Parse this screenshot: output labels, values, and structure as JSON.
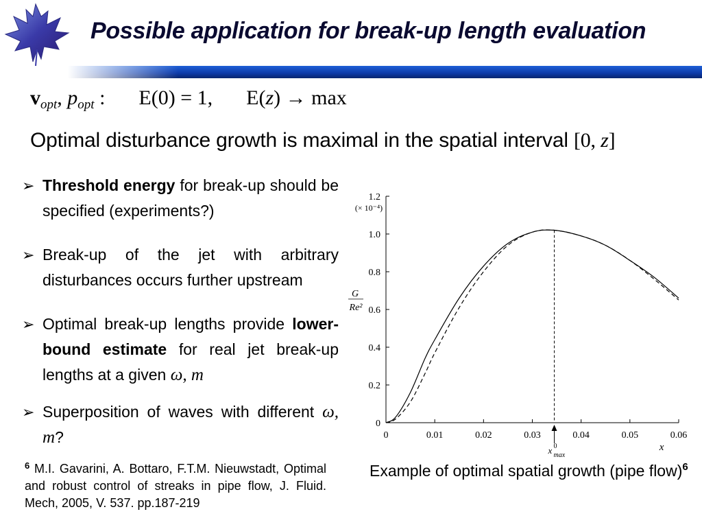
{
  "slide": {
    "title": "Possible application for break-up length evaluation",
    "formula": {
      "v": "v",
      "v_sub": "opt",
      "sep": ", ",
      "p": "p",
      "p_sub": "opt",
      "colon": " :",
      "cond1": "E(0) = 1,",
      "cond2_lhs": "E(",
      "cond2_z": "z",
      "cond2_rhs": ") → max"
    },
    "statement": {
      "text": "Optimal disturbance growth is maximal in the spatial interval ",
      "interval_open": "[0, ",
      "interval_z": "z",
      "interval_close": "]"
    },
    "bullets": [
      {
        "bold": "Threshold energy",
        "text": " for break-up should be specified (experiments?)"
      },
      {
        "text": "Break-up of the jet with arbitrary disturbances occurs further upstream"
      },
      {
        "pre": "Optimal break-up lengths provide ",
        "bold": "lower-bound estimate",
        "text": " for real jet break-up lengths  at a given ",
        "math": "ω, m"
      },
      {
        "text": "Superposition of waves with different ",
        "math": "ω, m",
        "post": "?"
      }
    ],
    "reference": {
      "number": "6",
      "text": " M.I. Gavarini, A. Bottaro, F.T.M. Nieuwstadt, Optimal and robust control of streaks in pipe flow, J. Fluid. Mech, 2005, V. 537. pp.187-219"
    },
    "caption": {
      "text": "Example of optimal spatial growth (pipe flow)",
      "sup": "6"
    }
  },
  "chart_data": {
    "type": "line",
    "ylabel_num": "G",
    "ylabel_den": "Re²",
    "xlabel": "x",
    "y_scale_note": "(× 10⁻⁴)",
    "xlim": [
      0,
      0.06
    ],
    "ylim": [
      0,
      1.2
    ],
    "x_ticks": [
      0,
      0.01,
      0.02,
      0.03,
      0.04,
      0.05,
      0.06
    ],
    "x_tick_labels": [
      "0",
      "0.01",
      "0.02",
      "0.03",
      "0.04",
      "0.05",
      "0.06"
    ],
    "y_ticks": [
      0,
      0.2,
      0.4,
      0.6,
      0.8,
      1.0,
      1.2
    ],
    "y_tick_labels": [
      "0",
      "0.2",
      "0.4",
      "0.6",
      "0.8",
      "1.0",
      "1.2"
    ],
    "marker": {
      "x": 0.0345,
      "label_main": "x",
      "label_sup": "0",
      "label_sub": "max"
    },
    "series": [
      {
        "style": "solid",
        "x": [
          0,
          0.002,
          0.005,
          0.008,
          0.01,
          0.015,
          0.02,
          0.025,
          0.03,
          0.0345,
          0.04,
          0.045,
          0.05,
          0.055,
          0.06
        ],
        "y": [
          0,
          0.03,
          0.16,
          0.34,
          0.44,
          0.66,
          0.83,
          0.95,
          1.01,
          1.02,
          0.99,
          0.94,
          0.86,
          0.77,
          0.66
        ]
      },
      {
        "style": "dashed",
        "x": [
          0,
          0.002,
          0.005,
          0.008,
          0.01,
          0.015,
          0.02,
          0.025,
          0.03,
          0.0345,
          0.04,
          0.045,
          0.05,
          0.055,
          0.06
        ],
        "y": [
          0,
          0.02,
          0.11,
          0.26,
          0.37,
          0.61,
          0.8,
          0.94,
          1.01,
          1.02,
          0.99,
          0.94,
          0.86,
          0.76,
          0.65
        ]
      }
    ]
  }
}
